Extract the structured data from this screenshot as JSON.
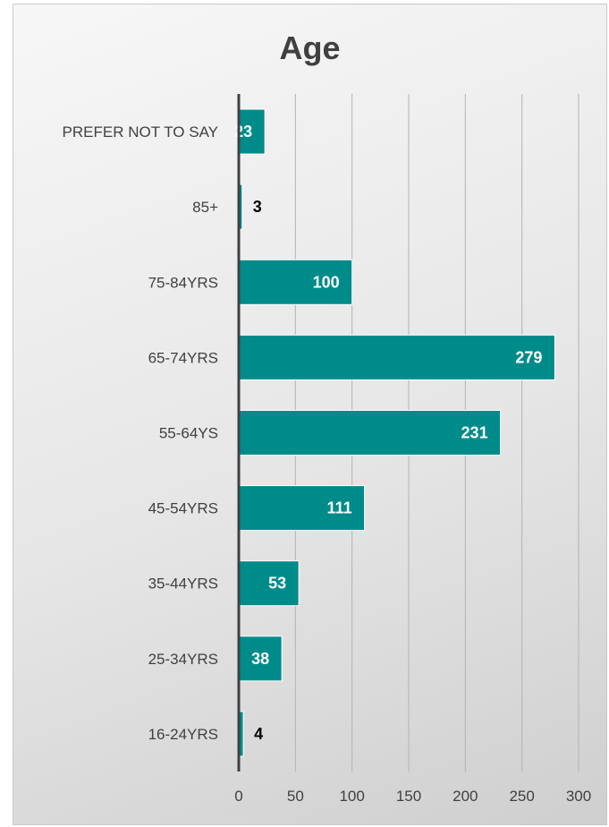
{
  "chart_data": {
    "type": "bar",
    "orientation": "horizontal",
    "title": "Age",
    "categories": [
      "PREFER NOT TO SAY",
      "85+",
      "75-84YRS",
      "65-74YRS",
      "55-64YS",
      "45-54YRS",
      "35-44YRS",
      "25-34YRS",
      "16-24YRS"
    ],
    "values": [
      23,
      3,
      100,
      279,
      231,
      111,
      53,
      38,
      4
    ],
    "xlim": [
      0,
      300
    ],
    "xticks": [
      "0",
      "50",
      "100",
      "150",
      "200",
      "250",
      "300"
    ],
    "grid": true,
    "legend": "none",
    "bar_color": "#008B8B",
    "label_inside_color": "#ffffff",
    "label_outside_color": "#000000"
  }
}
